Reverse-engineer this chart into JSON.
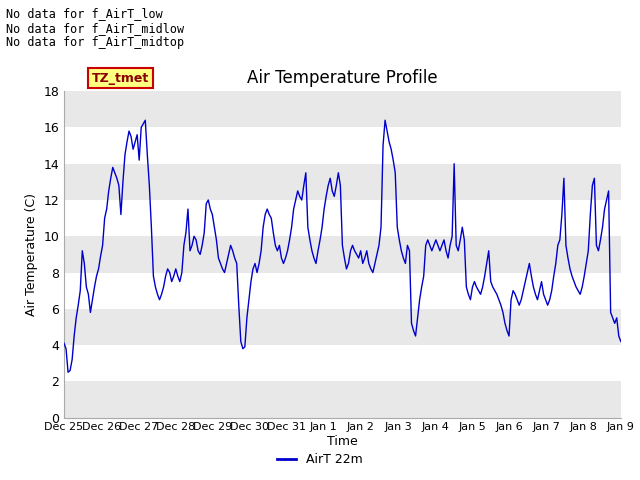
{
  "title": "Air Temperature Profile",
  "xlabel": "Time",
  "ylabel": "Air Temperature (C)",
  "legend_label": "AirT 22m",
  "annotations": [
    "No data for f_AirT_low",
    "No data for f_AirT_midlow",
    "No data for f_AirT_midtop"
  ],
  "tz_label": "TZ_tmet",
  "ylim": [
    0,
    18
  ],
  "yticks": [
    0,
    2,
    4,
    6,
    8,
    10,
    12,
    14,
    16,
    18
  ],
  "line_color": "#0000cc",
  "tick_labels": [
    "Dec 25",
    "Dec 26",
    "Dec 27",
    "Dec 28",
    "Dec 29",
    "Dec 30",
    "Dec 31",
    "Jan 1",
    "Jan 2",
    "Jan 3",
    "Jan 4",
    "Jan 5",
    "Jan 6",
    "Jan 7",
    "Jan 8",
    "Jan 9"
  ],
  "data_y": [
    4.1,
    3.8,
    2.5,
    2.6,
    3.2,
    4.5,
    5.5,
    6.2,
    7.0,
    9.2,
    8.5,
    7.2,
    6.8,
    5.8,
    6.5,
    7.2,
    7.8,
    8.2,
    8.9,
    9.5,
    11.0,
    11.5,
    12.5,
    13.2,
    13.8,
    13.5,
    13.2,
    12.8,
    11.2,
    13.0,
    14.5,
    15.2,
    15.8,
    15.5,
    14.8,
    15.2,
    15.6,
    14.2,
    16.0,
    16.2,
    16.4,
    14.5,
    12.8,
    10.5,
    7.8,
    7.2,
    6.8,
    6.5,
    6.8,
    7.2,
    7.8,
    8.2,
    8.0,
    7.5,
    7.8,
    8.2,
    7.8,
    7.5,
    8.0,
    9.5,
    10.2,
    11.5,
    9.2,
    9.5,
    10.0,
    9.8,
    9.2,
    9.0,
    9.5,
    10.2,
    11.8,
    12.0,
    11.5,
    11.2,
    10.5,
    9.8,
    8.8,
    8.5,
    8.2,
    8.0,
    8.5,
    9.0,
    9.5,
    9.2,
    8.8,
    8.5,
    6.2,
    4.2,
    3.8,
    3.9,
    5.5,
    6.5,
    7.5,
    8.2,
    8.5,
    8.0,
    8.5,
    9.2,
    10.5,
    11.2,
    11.5,
    11.2,
    11.0,
    10.2,
    9.5,
    9.2,
    9.5,
    8.8,
    8.5,
    8.8,
    9.2,
    9.8,
    10.5,
    11.5,
    12.0,
    12.5,
    12.2,
    12.0,
    12.8,
    13.5,
    10.5,
    9.8,
    9.2,
    8.8,
    8.5,
    9.2,
    9.8,
    10.5,
    11.5,
    12.2,
    12.8,
    13.2,
    12.5,
    12.2,
    12.8,
    13.5,
    12.8,
    9.5,
    8.8,
    8.2,
    8.5,
    9.2,
    9.5,
    9.2,
    9.0,
    8.8,
    9.2,
    8.5,
    8.8,
    9.2,
    8.5,
    8.2,
    8.0,
    8.5,
    9.0,
    9.5,
    10.5,
    15.0,
    16.4,
    15.8,
    15.2,
    14.8,
    14.2,
    13.5,
    10.5,
    9.8,
    9.2,
    8.8,
    8.5,
    9.5,
    9.2,
    5.2,
    4.8,
    4.5,
    5.5,
    6.5,
    7.2,
    7.8,
    9.5,
    9.8,
    9.5,
    9.2,
    9.5,
    9.8,
    9.5,
    9.2,
    9.5,
    9.8,
    9.2,
    8.8,
    9.5,
    10.0,
    14.0,
    9.5,
    9.2,
    9.8,
    10.5,
    9.8,
    7.2,
    6.8,
    6.5,
    7.2,
    7.5,
    7.2,
    7.0,
    6.8,
    7.2,
    7.8,
    8.5,
    9.2,
    7.5,
    7.2,
    7.0,
    6.8,
    6.5,
    6.2,
    5.8,
    5.2,
    4.8,
    4.5,
    6.5,
    7.0,
    6.8,
    6.5,
    6.2,
    6.5,
    7.0,
    7.5,
    8.0,
    8.5,
    7.8,
    7.2,
    6.8,
    6.5,
    7.0,
    7.5,
    6.8,
    6.5,
    6.2,
    6.5,
    7.0,
    7.8,
    8.5,
    9.5,
    9.8,
    11.2,
    13.2,
    9.5,
    8.8,
    8.2,
    7.8,
    7.5,
    7.2,
    7.0,
    6.8,
    7.2,
    7.8,
    8.5,
    9.2,
    11.2,
    12.8,
    13.2,
    9.5,
    9.2,
    9.8,
    10.5,
    11.5,
    12.0,
    12.5,
    5.8,
    5.5,
    5.2,
    5.5,
    4.5,
    4.2
  ]
}
